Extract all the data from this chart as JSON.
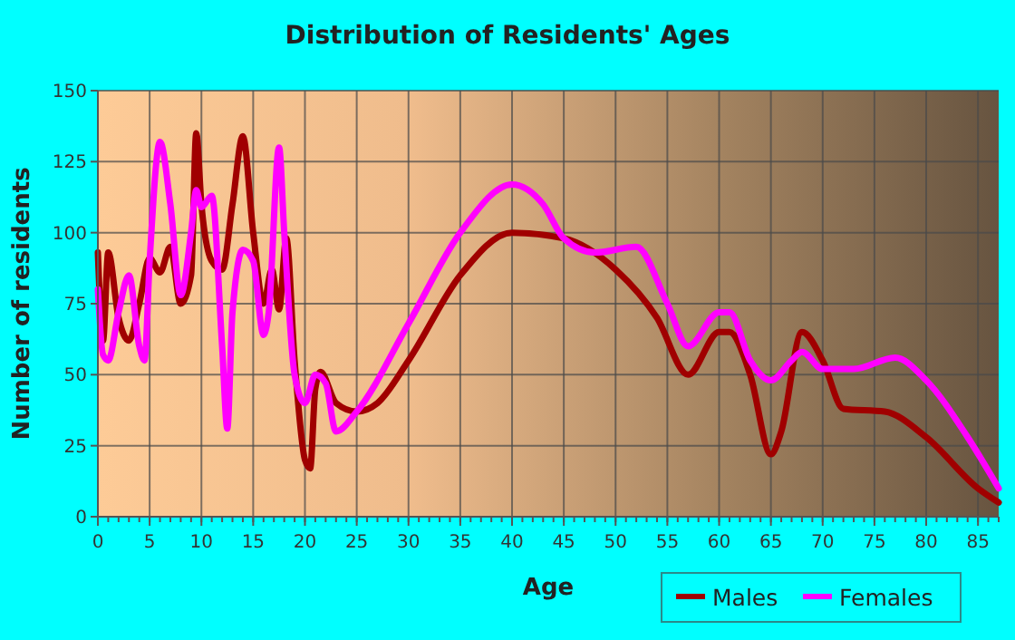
{
  "chart_data": {
    "type": "line",
    "title": "Distribution of Residents' Ages",
    "xlabel": "Age",
    "ylabel": "Number of residents",
    "xlim": [
      0,
      87
    ],
    "xticks": [
      0,
      5,
      10,
      15,
      20,
      25,
      30,
      35,
      40,
      45,
      50,
      55,
      60,
      65,
      70,
      75,
      80,
      85
    ],
    "ylim": [
      0,
      150
    ],
    "yticks": [
      0,
      25,
      50,
      75,
      100,
      125,
      150
    ],
    "grid": true,
    "legend": "bottom right",
    "line_style": "solid",
    "series": [
      {
        "name": "Males",
        "color": "#a00000",
        "x": [
          0,
          0.5,
          1,
          2,
          3,
          4,
          5,
          6,
          7,
          8,
          9,
          9.5,
          10,
          11,
          12,
          13,
          14,
          15,
          16,
          16.8,
          17.5,
          18.2,
          19,
          20,
          20.5,
          21,
          21.5,
          23,
          25,
          27,
          30,
          35,
          40,
          45,
          50,
          54,
          57,
          60,
          61,
          63,
          65,
          66,
          68,
          70,
          72,
          76,
          80,
          85,
          87
        ],
        "values": [
          93,
          62,
          93,
          70,
          62,
          75,
          91,
          86,
          95,
          75,
          85,
          135,
          110,
          90,
          87,
          110,
          134,
          100,
          75,
          87,
          73,
          98,
          55,
          20,
          17,
          45,
          51,
          40,
          37,
          40,
          55,
          85,
          100,
          98,
          87,
          70,
          50,
          65,
          65,
          50,
          22,
          30,
          65,
          55,
          38,
          37,
          28,
          10,
          5
        ]
      },
      {
        "name": "Females",
        "color": "#ff00ff",
        "x": [
          0,
          0.5,
          1,
          2,
          3,
          4,
          4.5,
          5,
          6,
          7,
          8,
          9,
          9.5,
          10,
          11,
          12,
          12.5,
          13,
          14,
          15,
          16,
          16.5,
          17.5,
          18,
          19,
          20,
          21,
          22,
          23,
          25,
          30,
          35,
          40,
          43,
          45,
          48,
          52,
          55,
          57,
          60,
          61,
          63,
          65,
          67,
          68,
          70,
          73,
          77,
          80,
          84,
          87
        ],
        "values": [
          80,
          57,
          55,
          72,
          85,
          60,
          55,
          90,
          132,
          110,
          78,
          100,
          115,
          109,
          113,
          60,
          31,
          72,
          94,
          90,
          64,
          72,
          130,
          100,
          50,
          40,
          50,
          47,
          30,
          37,
          68,
          100,
          117,
          110,
          98,
          93,
          95,
          75,
          60,
          72,
          72,
          55,
          48,
          55,
          58,
          52,
          52,
          56,
          48,
          28,
          10
        ]
      }
    ]
  }
}
